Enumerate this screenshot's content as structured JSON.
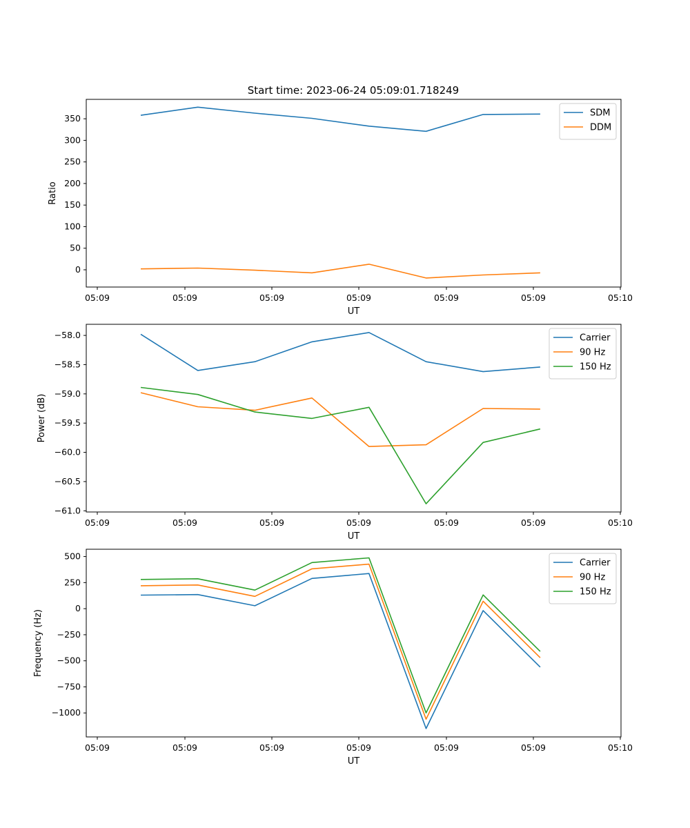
{
  "figure_title": "Start time: 2023-06-24 05:09:01.718249",
  "colors": {
    "blue": "#1f77b4",
    "orange": "#ff7f0e",
    "green": "#2ca02c"
  },
  "chart_data": [
    {
      "type": "line",
      "title": "Start time: 2023-06-24 05:09:01.718249",
      "xlabel": "UT",
      "ylabel": "Ratio",
      "x": [
        1,
        2,
        3,
        4,
        5,
        6,
        7,
        8
      ],
      "x_tick_labels": [
        "05:09",
        "05:09",
        "05:09",
        "05:09",
        "05:09",
        "05:09",
        "05:09"
      ],
      "x_tick_label_last": "05:10",
      "ylim": [
        -40,
        395
      ],
      "yticks": [
        0,
        50,
        100,
        150,
        200,
        250,
        300,
        350
      ],
      "legend_position": "top-right",
      "grid": false,
      "series": [
        {
          "name": "SDM",
          "color": "#1f77b4",
          "values": [
            358,
            377,
            363,
            351,
            333,
            321,
            360,
            361
          ]
        },
        {
          "name": "DDM",
          "color": "#ff7f0e",
          "values": [
            2,
            4,
            -1,
            -7,
            13,
            -19,
            -12,
            -7
          ]
        }
      ]
    },
    {
      "type": "line",
      "title": "",
      "xlabel": "UT",
      "ylabel": "Power (dB)",
      "x": [
        1,
        2,
        3,
        4,
        5,
        6,
        7,
        8
      ],
      "x_tick_labels": [
        "05:09",
        "05:09",
        "05:09",
        "05:09",
        "05:09",
        "05:09",
        "05:09"
      ],
      "x_tick_label_last": "05:10",
      "ylim": [
        -61.02,
        -57.81
      ],
      "yticks": [
        -61.0,
        -60.5,
        -60.0,
        -59.5,
        -59.0,
        -58.5,
        -58.0
      ],
      "legend_position": "top-right",
      "grid": false,
      "series": [
        {
          "name": "Carrier",
          "color": "#1f77b4",
          "values": [
            -57.98,
            -58.6,
            -58.45,
            -58.11,
            -57.95,
            -58.45,
            -58.62,
            -58.54
          ]
        },
        {
          "name": "90 Hz",
          "color": "#ff7f0e",
          "values": [
            -58.98,
            -59.22,
            -59.28,
            -59.07,
            -59.9,
            -59.87,
            -59.25,
            -59.26
          ]
        },
        {
          "name": "150 Hz",
          "color": "#2ca02c",
          "values": [
            -58.89,
            -59.01,
            -59.31,
            -59.42,
            -59.23,
            -60.88,
            -59.83,
            -59.6
          ]
        }
      ]
    },
    {
      "type": "line",
      "title": "",
      "xlabel": "UT",
      "ylabel": "Frequency (Hz)",
      "x": [
        1,
        2,
        3,
        4,
        5,
        6,
        7,
        8
      ],
      "x_tick_labels": [
        "05:09",
        "05:09",
        "05:09",
        "05:09",
        "05:09",
        "05:09",
        "05:09"
      ],
      "x_tick_label_last": "05:10",
      "ylim": [
        -1230,
        570
      ],
      "yticks": [
        -1000,
        -750,
        -500,
        -250,
        0,
        250,
        500
      ],
      "legend_position": "top-right",
      "grid": false,
      "series": [
        {
          "name": "Carrier",
          "color": "#1f77b4",
          "values": [
            130,
            135,
            28,
            290,
            337,
            -1150,
            -18,
            -560
          ]
        },
        {
          "name": "90 Hz",
          "color": "#ff7f0e",
          "values": [
            220,
            227,
            118,
            382,
            427,
            -1060,
            72,
            -470
          ]
        },
        {
          "name": "150 Hz",
          "color": "#2ca02c",
          "values": [
            280,
            287,
            178,
            442,
            487,
            -1000,
            132,
            -410
          ]
        }
      ]
    }
  ]
}
